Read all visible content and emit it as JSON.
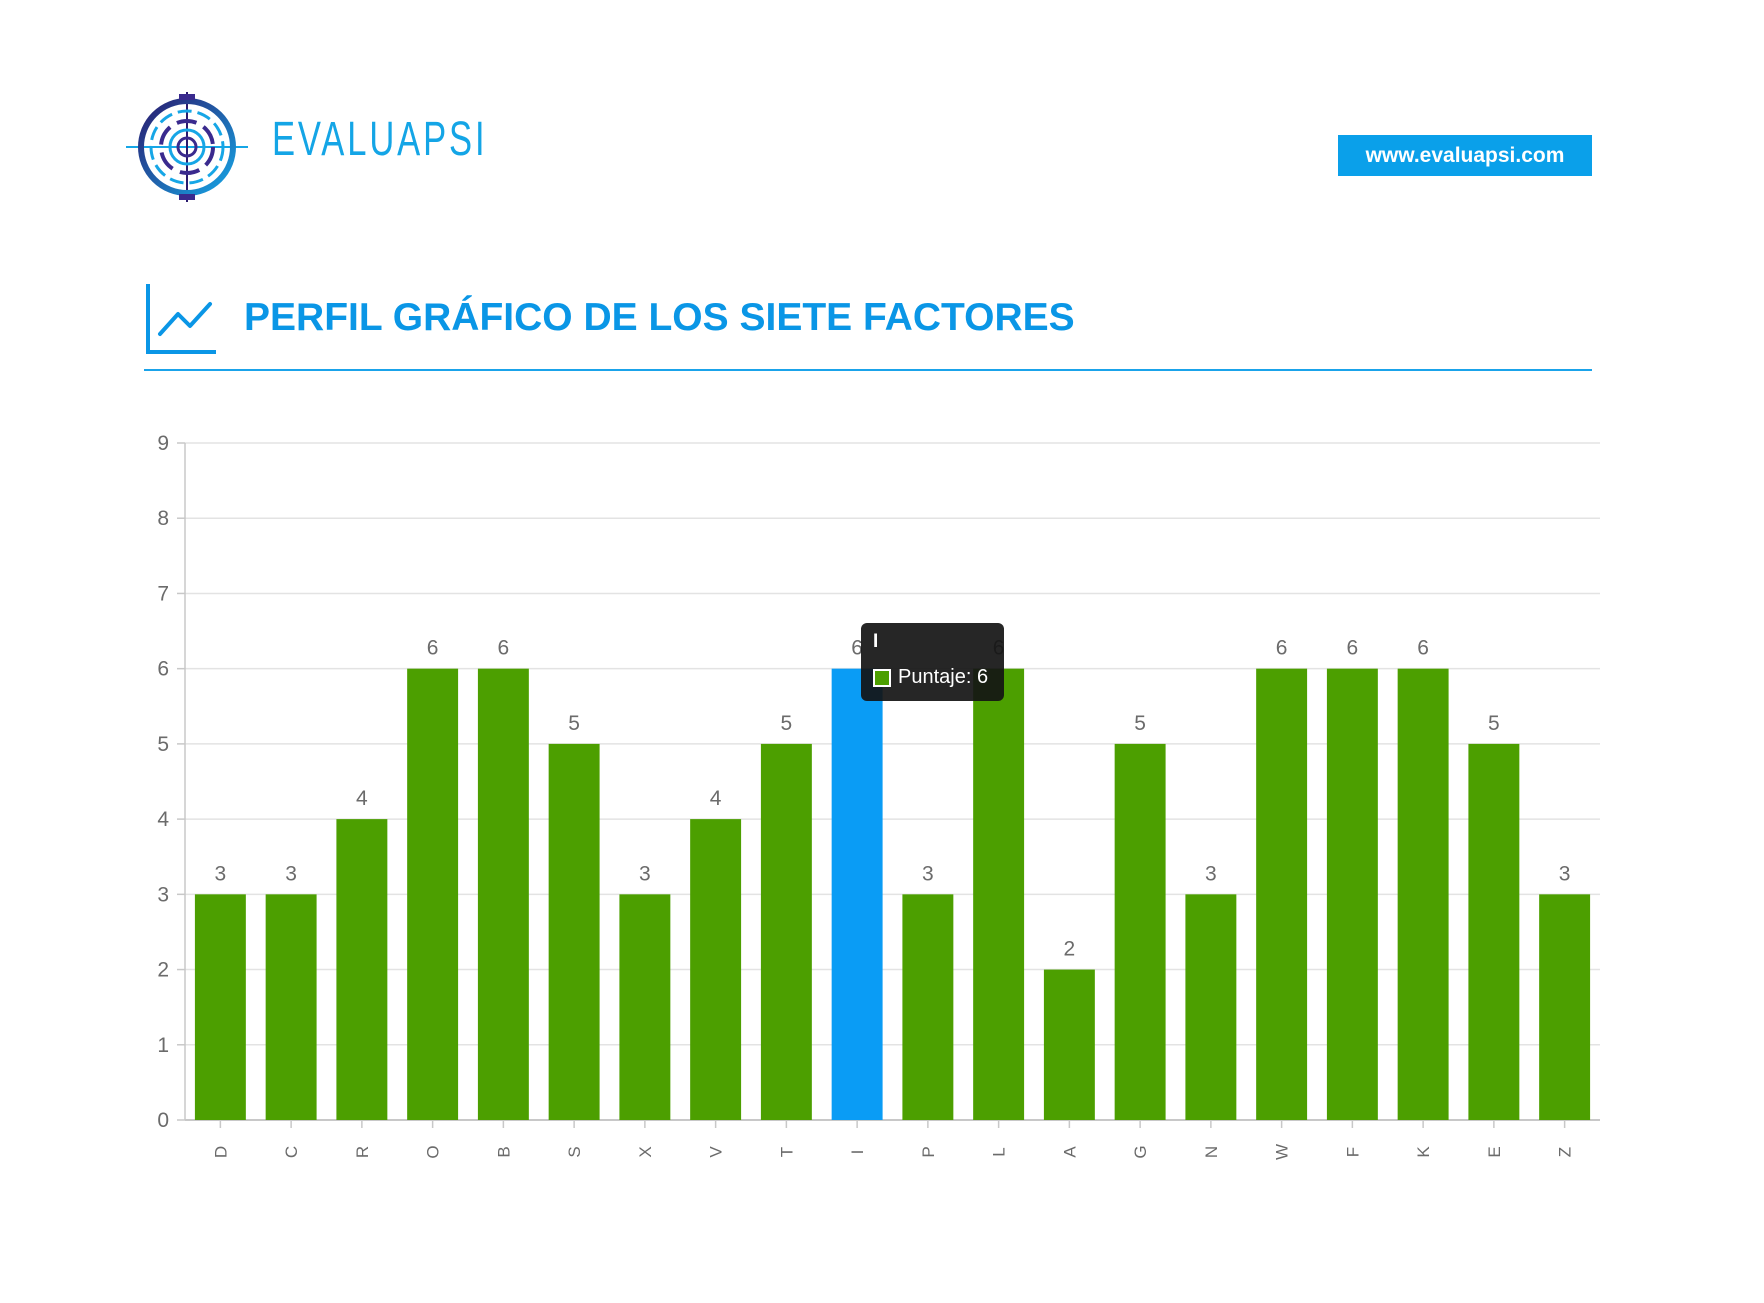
{
  "header": {
    "brand_name": "EVALUAPSI",
    "site_url": "www.evaluapsi.com"
  },
  "section": {
    "title": "PERFIL GRÁFICO DE LOS SIETE FACTORES"
  },
  "colors": {
    "brand_blue": "#14a5e6",
    "bar_green": "#4c9f00",
    "bar_highlight": "#0a9cf5",
    "title_blue": "#0a96e6"
  },
  "tooltip": {
    "title": "I",
    "label": "Puntaje: 6"
  },
  "chart_data": {
    "type": "bar",
    "categories": [
      "D",
      "C",
      "R",
      "O",
      "B",
      "S",
      "X",
      "V",
      "T",
      "I",
      "P",
      "L",
      "A",
      "G",
      "N",
      "W",
      "F",
      "K",
      "E",
      "Z"
    ],
    "series": [
      {
        "values": [
          3,
          3,
          4,
          6,
          6,
          5,
          3,
          4,
          5,
          6,
          3,
          6,
          2,
          5,
          3,
          6,
          6,
          6,
          5,
          3
        ]
      }
    ],
    "ylim": [
      0,
      9
    ],
    "yticks": [
      "0",
      "1",
      "2",
      "3",
      "4",
      "5",
      "6",
      "7",
      "8",
      "9"
    ],
    "highlighted_category": "I",
    "grid": true,
    "legend": "none",
    "xlabel": "",
    "ylabel": "",
    "title": ""
  }
}
